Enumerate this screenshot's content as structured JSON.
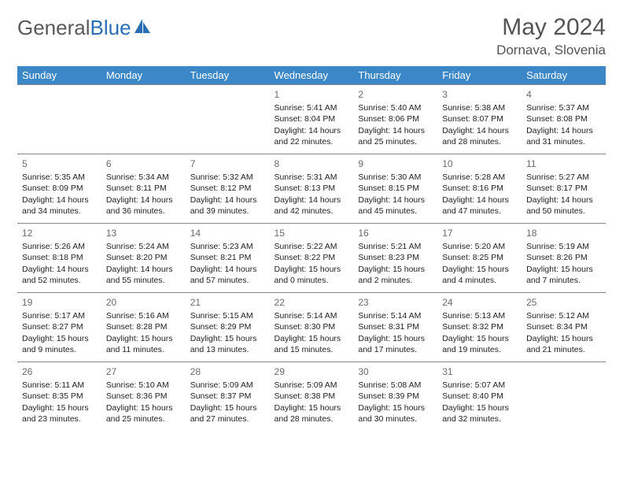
{
  "logo": {
    "part1": "General",
    "part2": "Blue"
  },
  "title": "May 2024",
  "location": "Dornava, Slovenia",
  "colors": {
    "header_bg": "#3b87c8",
    "header_text": "#ffffff",
    "border": "#888888",
    "title_text": "#555555",
    "logo_gray": "#5a5a5a",
    "logo_blue": "#2a6fb5",
    "daynum": "#6a6a6a",
    "body_text": "#222222",
    "background": "#ffffff"
  },
  "typography": {
    "font_family": "Arial, Helvetica, sans-serif",
    "month_title_size": 30,
    "location_size": 17,
    "header_cell_size": 13,
    "daynum_size": 12,
    "cell_size": 10.5
  },
  "day_headers": [
    "Sunday",
    "Monday",
    "Tuesday",
    "Wednesday",
    "Thursday",
    "Friday",
    "Saturday"
  ],
  "weeks": [
    [
      null,
      null,
      null,
      {
        "n": "1",
        "sr": "5:41 AM",
        "ss": "8:04 PM",
        "dh": "14",
        "dm": "22"
      },
      {
        "n": "2",
        "sr": "5:40 AM",
        "ss": "8:06 PM",
        "dh": "14",
        "dm": "25"
      },
      {
        "n": "3",
        "sr": "5:38 AM",
        "ss": "8:07 PM",
        "dh": "14",
        "dm": "28"
      },
      {
        "n": "4",
        "sr": "5:37 AM",
        "ss": "8:08 PM",
        "dh": "14",
        "dm": "31"
      }
    ],
    [
      {
        "n": "5",
        "sr": "5:35 AM",
        "ss": "8:09 PM",
        "dh": "14",
        "dm": "34"
      },
      {
        "n": "6",
        "sr": "5:34 AM",
        "ss": "8:11 PM",
        "dh": "14",
        "dm": "36"
      },
      {
        "n": "7",
        "sr": "5:32 AM",
        "ss": "8:12 PM",
        "dh": "14",
        "dm": "39"
      },
      {
        "n": "8",
        "sr": "5:31 AM",
        "ss": "8:13 PM",
        "dh": "14",
        "dm": "42"
      },
      {
        "n": "9",
        "sr": "5:30 AM",
        "ss": "8:15 PM",
        "dh": "14",
        "dm": "45"
      },
      {
        "n": "10",
        "sr": "5:28 AM",
        "ss": "8:16 PM",
        "dh": "14",
        "dm": "47"
      },
      {
        "n": "11",
        "sr": "5:27 AM",
        "ss": "8:17 PM",
        "dh": "14",
        "dm": "50"
      }
    ],
    [
      {
        "n": "12",
        "sr": "5:26 AM",
        "ss": "8:18 PM",
        "dh": "14",
        "dm": "52"
      },
      {
        "n": "13",
        "sr": "5:24 AM",
        "ss": "8:20 PM",
        "dh": "14",
        "dm": "55"
      },
      {
        "n": "14",
        "sr": "5:23 AM",
        "ss": "8:21 PM",
        "dh": "14",
        "dm": "57"
      },
      {
        "n": "15",
        "sr": "5:22 AM",
        "ss": "8:22 PM",
        "dh": "15",
        "dm": "0"
      },
      {
        "n": "16",
        "sr": "5:21 AM",
        "ss": "8:23 PM",
        "dh": "15",
        "dm": "2"
      },
      {
        "n": "17",
        "sr": "5:20 AM",
        "ss": "8:25 PM",
        "dh": "15",
        "dm": "4"
      },
      {
        "n": "18",
        "sr": "5:19 AM",
        "ss": "8:26 PM",
        "dh": "15",
        "dm": "7"
      }
    ],
    [
      {
        "n": "19",
        "sr": "5:17 AM",
        "ss": "8:27 PM",
        "dh": "15",
        "dm": "9"
      },
      {
        "n": "20",
        "sr": "5:16 AM",
        "ss": "8:28 PM",
        "dh": "15",
        "dm": "11"
      },
      {
        "n": "21",
        "sr": "5:15 AM",
        "ss": "8:29 PM",
        "dh": "15",
        "dm": "13"
      },
      {
        "n": "22",
        "sr": "5:14 AM",
        "ss": "8:30 PM",
        "dh": "15",
        "dm": "15"
      },
      {
        "n": "23",
        "sr": "5:14 AM",
        "ss": "8:31 PM",
        "dh": "15",
        "dm": "17"
      },
      {
        "n": "24",
        "sr": "5:13 AM",
        "ss": "8:32 PM",
        "dh": "15",
        "dm": "19"
      },
      {
        "n": "25",
        "sr": "5:12 AM",
        "ss": "8:34 PM",
        "dh": "15",
        "dm": "21"
      }
    ],
    [
      {
        "n": "26",
        "sr": "5:11 AM",
        "ss": "8:35 PM",
        "dh": "15",
        "dm": "23"
      },
      {
        "n": "27",
        "sr": "5:10 AM",
        "ss": "8:36 PM",
        "dh": "15",
        "dm": "25"
      },
      {
        "n": "28",
        "sr": "5:09 AM",
        "ss": "8:37 PM",
        "dh": "15",
        "dm": "27"
      },
      {
        "n": "29",
        "sr": "5:09 AM",
        "ss": "8:38 PM",
        "dh": "15",
        "dm": "28"
      },
      {
        "n": "30",
        "sr": "5:08 AM",
        "ss": "8:39 PM",
        "dh": "15",
        "dm": "30"
      },
      {
        "n": "31",
        "sr": "5:07 AM",
        "ss": "8:40 PM",
        "dh": "15",
        "dm": "32"
      },
      null
    ]
  ],
  "labels": {
    "sunrise": "Sunrise: ",
    "sunset": "Sunset: ",
    "daylight_a": "Daylight: ",
    "daylight_b": " hours and ",
    "daylight_c": " minutes."
  }
}
